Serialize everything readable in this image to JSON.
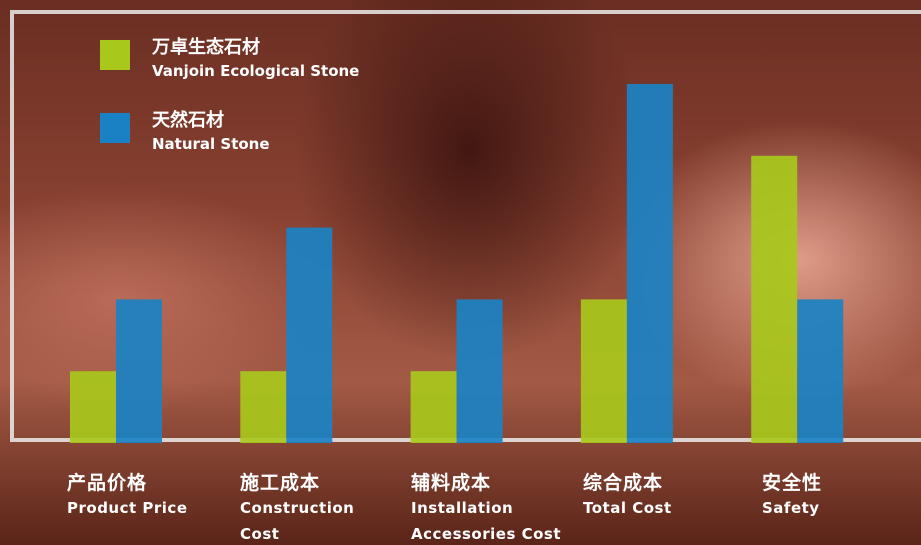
{
  "chart_data": {
    "type": "bar",
    "categories": [
      "产品价格",
      "施工成本",
      "辅料成本",
      "综合成本",
      "安全性"
    ],
    "categories_en": [
      "Product Price",
      "Construction Cost",
      "Installation Accessories Cost",
      "Total Cost",
      "Safety"
    ],
    "series": [
      {
        "name": "万卓生态石材",
        "name_en": "Vanjoin Ecological Stone",
        "color": "#a8c81c",
        "values": [
          1,
          1,
          1,
          2,
          4
        ]
      },
      {
        "name": "天然石材",
        "name_en": "Natural Stone",
        "color": "#1a82c4",
        "values": [
          2,
          3,
          2,
          5,
          2
        ]
      }
    ]
  }
}
